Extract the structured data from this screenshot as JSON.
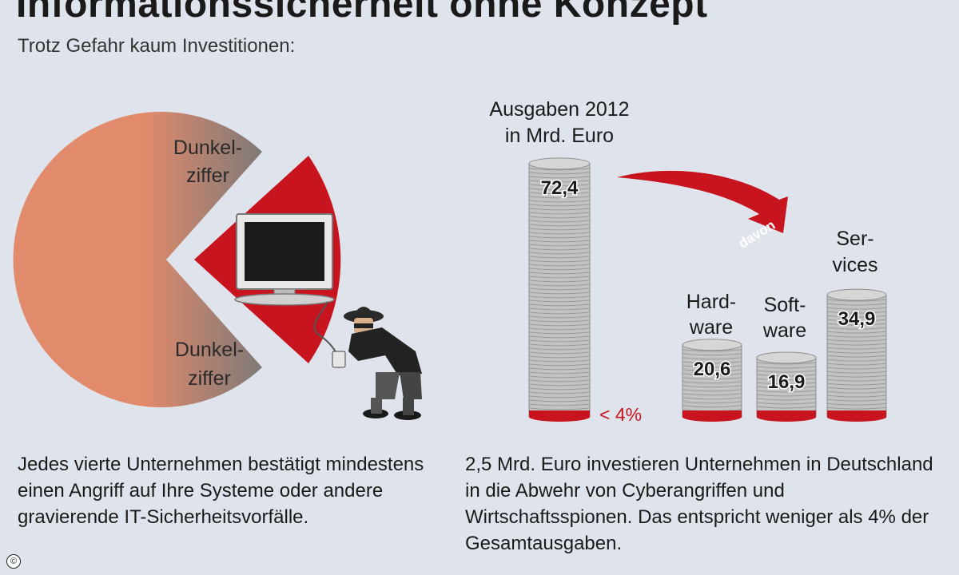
{
  "header": {
    "title": "Informationssicherheit ohne Konzept",
    "subtitle": "Trotz Gefahr kaum Investitionen:"
  },
  "left_graphic": {
    "label_top_line1": "Dunkel-",
    "label_top_line2": "ziffer",
    "label_bottom_line1": "Dunkel-",
    "label_bottom_line2": "ziffer"
  },
  "chart_data": {
    "type": "bar",
    "title": "Ausgaben 2012 in Mrd. Euro",
    "title_line1": "Ausgaben 2012",
    "title_line2": "in Mrd. Euro",
    "total": {
      "value": 72.4,
      "label": "72,4",
      "share_label": "< 4%"
    },
    "arrow_label": "davon",
    "categories": [
      {
        "line1": "Hard-",
        "line2": "ware"
      },
      {
        "line1": "Soft-",
        "line2": "ware"
      },
      {
        "line1": "Ser-",
        "line2": "vices"
      }
    ],
    "values": [
      20.6,
      16.9,
      34.9
    ],
    "value_labels": [
      "20,6",
      "16,9",
      "34,9"
    ]
  },
  "captions": {
    "left": "Jedes vierte Unternehmen bestätigt mindestens einen Angriff auf Ihre Systeme oder andere gravierende IT-Sicherheitsvorfälle.",
    "right": "2,5 Mrd. Euro investieren Unternehmen in Deutschland in die Abwehr von Cyberangriffen und Wirtschaftsspionen. Das entspricht weniger als 4% der Gesamtausgaben."
  },
  "colors": {
    "background": "#dfe4ec",
    "pie": "#e0896c",
    "pie_dark": "#8a7f7c",
    "accent_red": "#c8141e",
    "coin": "#c3c3c3",
    "coin_edge": "#8e8e8e"
  },
  "footer": {
    "copyright_symbol": "©"
  }
}
